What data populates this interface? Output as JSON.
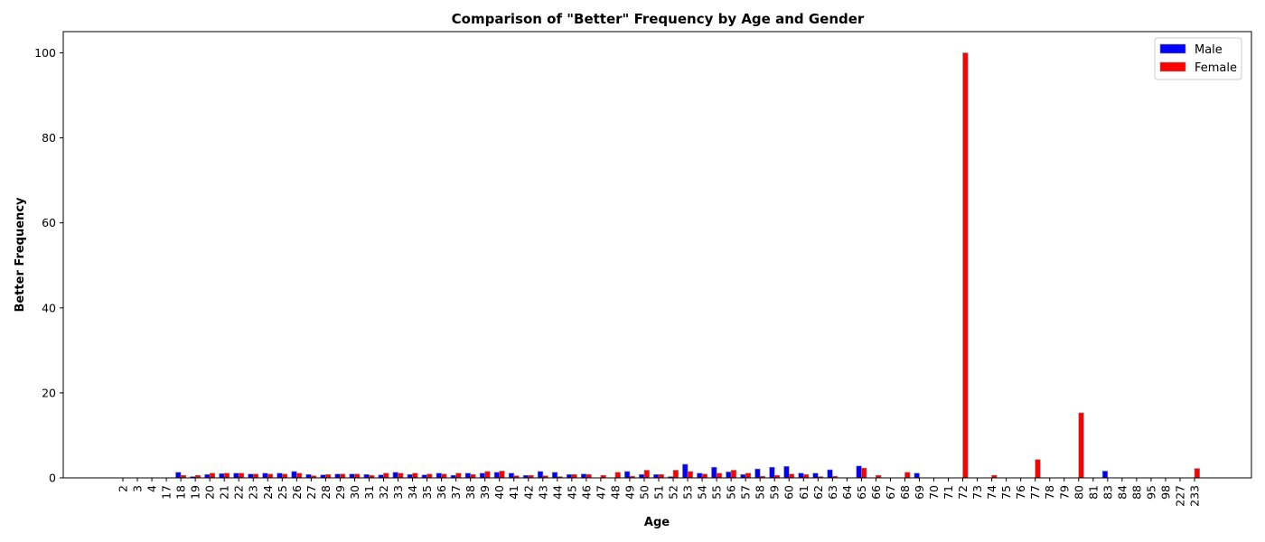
{
  "chart_data": {
    "type": "bar",
    "title": "Comparison of \"Better\" Frequency by Age and Gender",
    "xlabel": "Age",
    "ylabel": "Better Frequency",
    "ylim": [
      0,
      105
    ],
    "yticks": [
      0,
      20,
      40,
      60,
      80,
      100
    ],
    "grid": false,
    "legend_position": "top-right",
    "categories": [
      "2",
      "3",
      "4",
      "17",
      "18",
      "19",
      "20",
      "21",
      "22",
      "23",
      "24",
      "25",
      "26",
      "27",
      "28",
      "29",
      "30",
      "31",
      "32",
      "33",
      "34",
      "35",
      "36",
      "37",
      "38",
      "39",
      "40",
      "41",
      "42",
      "43",
      "44",
      "45",
      "46",
      "47",
      "48",
      "49",
      "50",
      "51",
      "52",
      "53",
      "54",
      "55",
      "56",
      "57",
      "58",
      "59",
      "60",
      "61",
      "62",
      "63",
      "64",
      "65",
      "66",
      "67",
      "68",
      "69",
      "70",
      "71",
      "72",
      "73",
      "74",
      "75",
      "76",
      "77",
      "78",
      "79",
      "80",
      "81",
      "83",
      "84",
      "88",
      "95",
      "98",
      "227",
      "233"
    ],
    "series": [
      {
        "name": "Male",
        "color": "#0000ff",
        "values": [
          0,
          0,
          0,
          0,
          1.3,
          0.3,
          0.8,
          1.0,
          1.1,
          0.9,
          1.1,
          1.1,
          1.5,
          0.8,
          0.7,
          0.9,
          0.9,
          0.8,
          0.7,
          1.3,
          0.8,
          0.7,
          1.1,
          0.6,
          1.1,
          1.1,
          1.3,
          1.1,
          0.6,
          1.5,
          1.3,
          0.8,
          0.9,
          0,
          0,
          1.5,
          0.8,
          0.8,
          0.3,
          3.2,
          1.1,
          2.5,
          1.4,
          0.8,
          2.1,
          2.5,
          2.7,
          1.1,
          1.1,
          1.9,
          0,
          2.8,
          0,
          0,
          0,
          1.1,
          0,
          0,
          0,
          0,
          0,
          0,
          0,
          0,
          0,
          0,
          0,
          0,
          1.6,
          0,
          0,
          0,
          0,
          0,
          0
        ]
      },
      {
        "name": "Female",
        "color": "#ff0000",
        "values": [
          0,
          0,
          0,
          0,
          0.6,
          0.6,
          1.1,
          1.1,
          1.1,
          0.9,
          0.9,
          0.9,
          1.1,
          0.5,
          0.8,
          0.9,
          0.9,
          0.6,
          1.1,
          1.1,
          1.1,
          0.9,
          0.9,
          1.1,
          0.8,
          1.5,
          1.6,
          0.5,
          0.6,
          0.5,
          0.3,
          0.8,
          0.8,
          0.6,
          1.3,
          0.4,
          1.8,
          0.8,
          1.8,
          1.5,
          0.9,
          1.1,
          1.8,
          1.1,
          0.4,
          0.6,
          0.9,
          0.8,
          0.3,
          0.4,
          0,
          2.3,
          0.6,
          0,
          1.3,
          0,
          0,
          0,
          100,
          0,
          0.6,
          0,
          0,
          4.3,
          0,
          0,
          15.3,
          0,
          0,
          0,
          0,
          0,
          0,
          0,
          2.2
        ]
      }
    ]
  }
}
